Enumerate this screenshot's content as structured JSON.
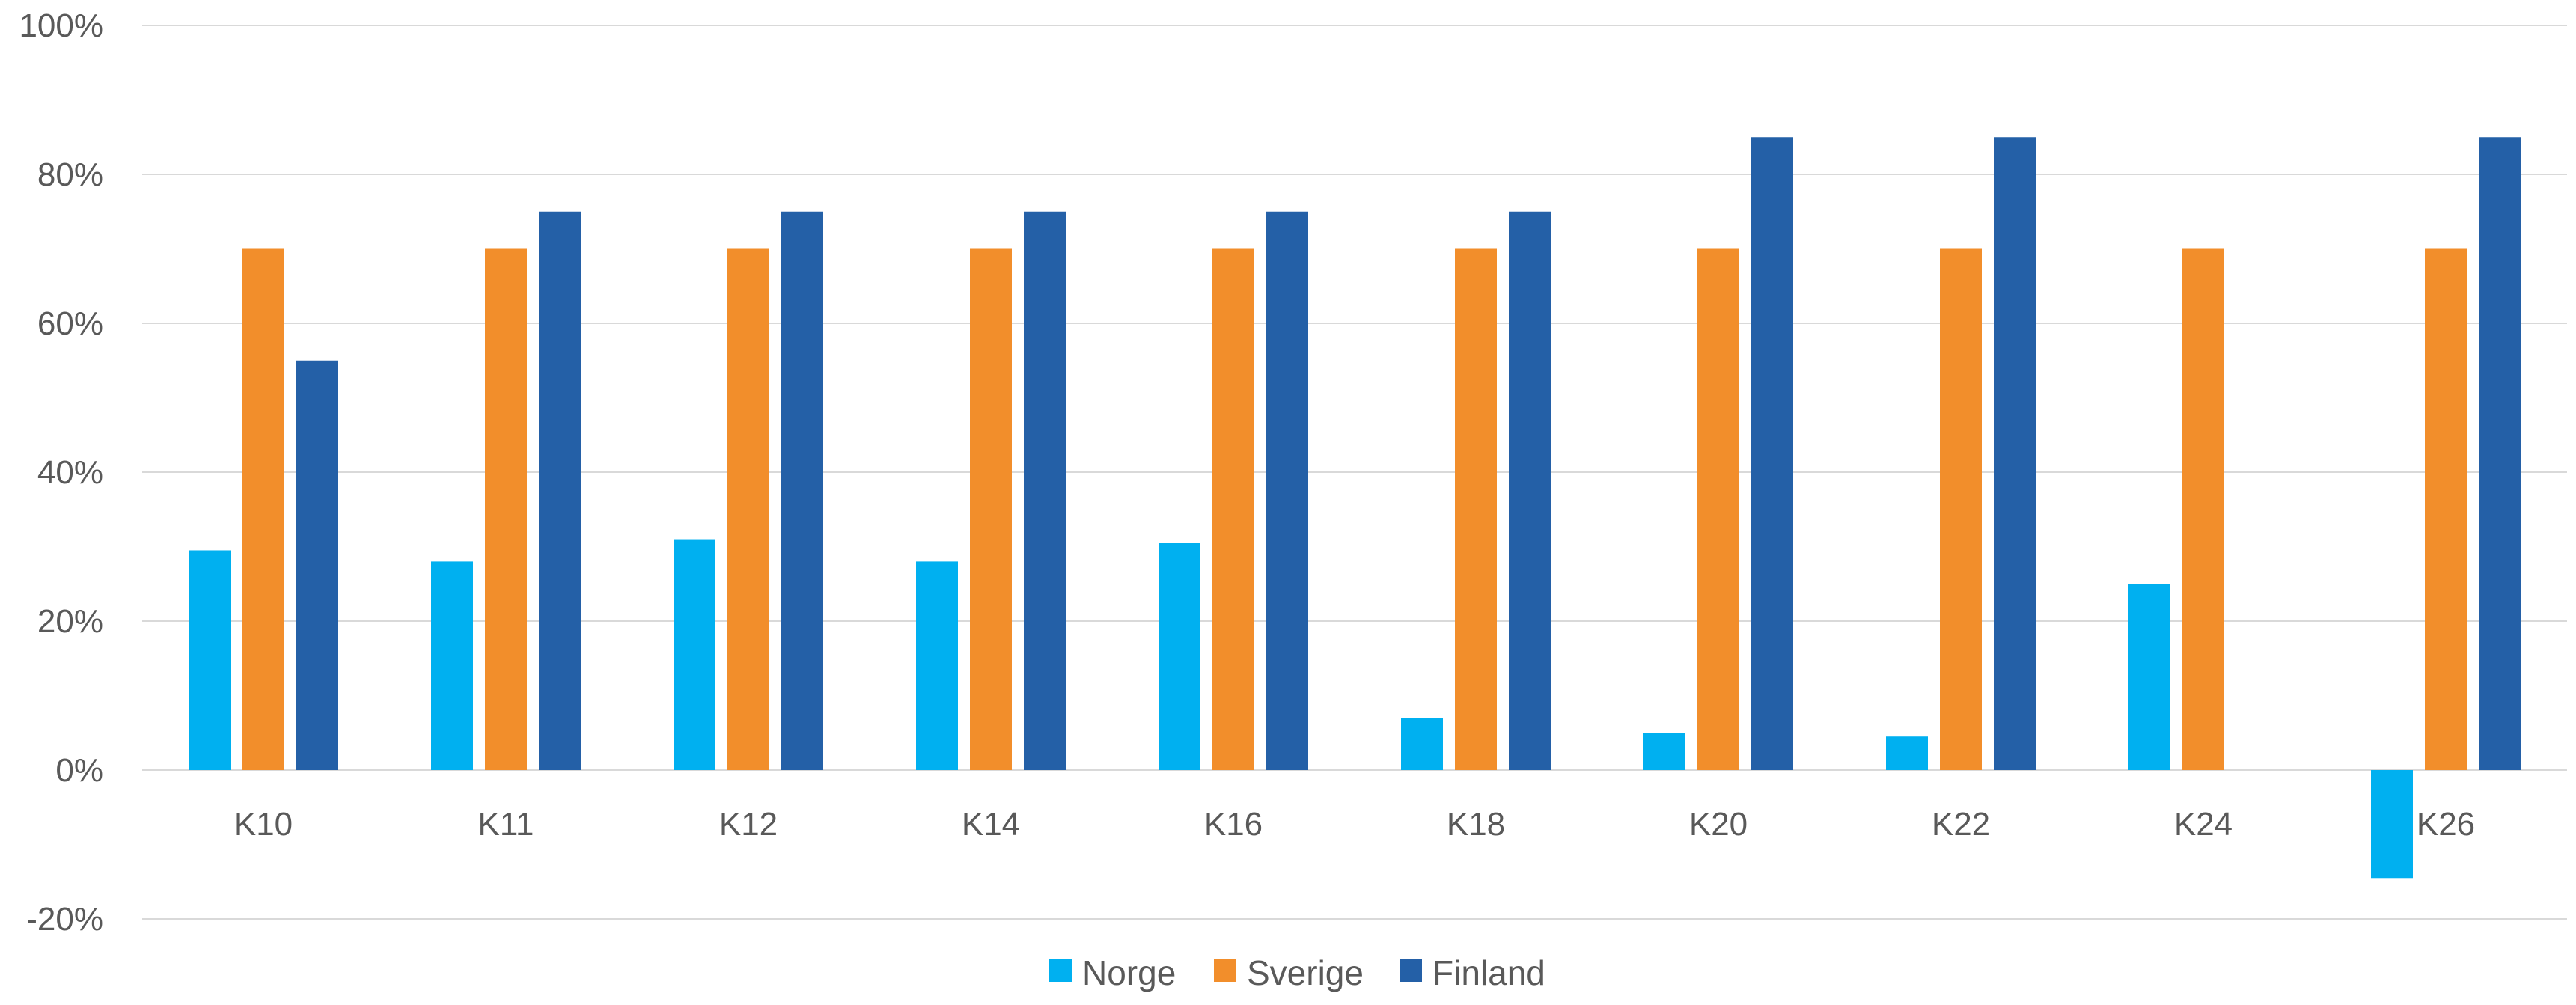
{
  "chart_data": {
    "type": "bar",
    "categories": [
      "K10",
      "K11",
      "K12",
      "K14",
      "K16",
      "K18",
      "K20",
      "K22",
      "K24",
      "K26"
    ],
    "series": [
      {
        "name": "Norge",
        "color": "#00B0F0",
        "values": [
          29.5,
          28,
          31,
          28,
          30.5,
          7,
          5,
          4.5,
          25,
          -14.5
        ]
      },
      {
        "name": "Sverige",
        "color": "#F28E2B",
        "values": [
          70,
          70,
          70,
          70,
          70,
          70,
          70,
          70,
          70,
          70
        ]
      },
      {
        "name": "Finland",
        "color": "#2460A7",
        "values": [
          55,
          75,
          75,
          75,
          75,
          75,
          85,
          85,
          null,
          85
        ]
      }
    ],
    "ylim": [
      -20,
      100
    ],
    "yticks": [
      -20,
      0,
      20,
      40,
      60,
      80,
      100
    ],
    "ytick_labels": [
      "-20%",
      "0%",
      "20%",
      "40%",
      "60%",
      "80%",
      "100%"
    ],
    "title": "",
    "xlabel": "",
    "ylabel": "",
    "grid": true,
    "legend_position": "bottom"
  }
}
